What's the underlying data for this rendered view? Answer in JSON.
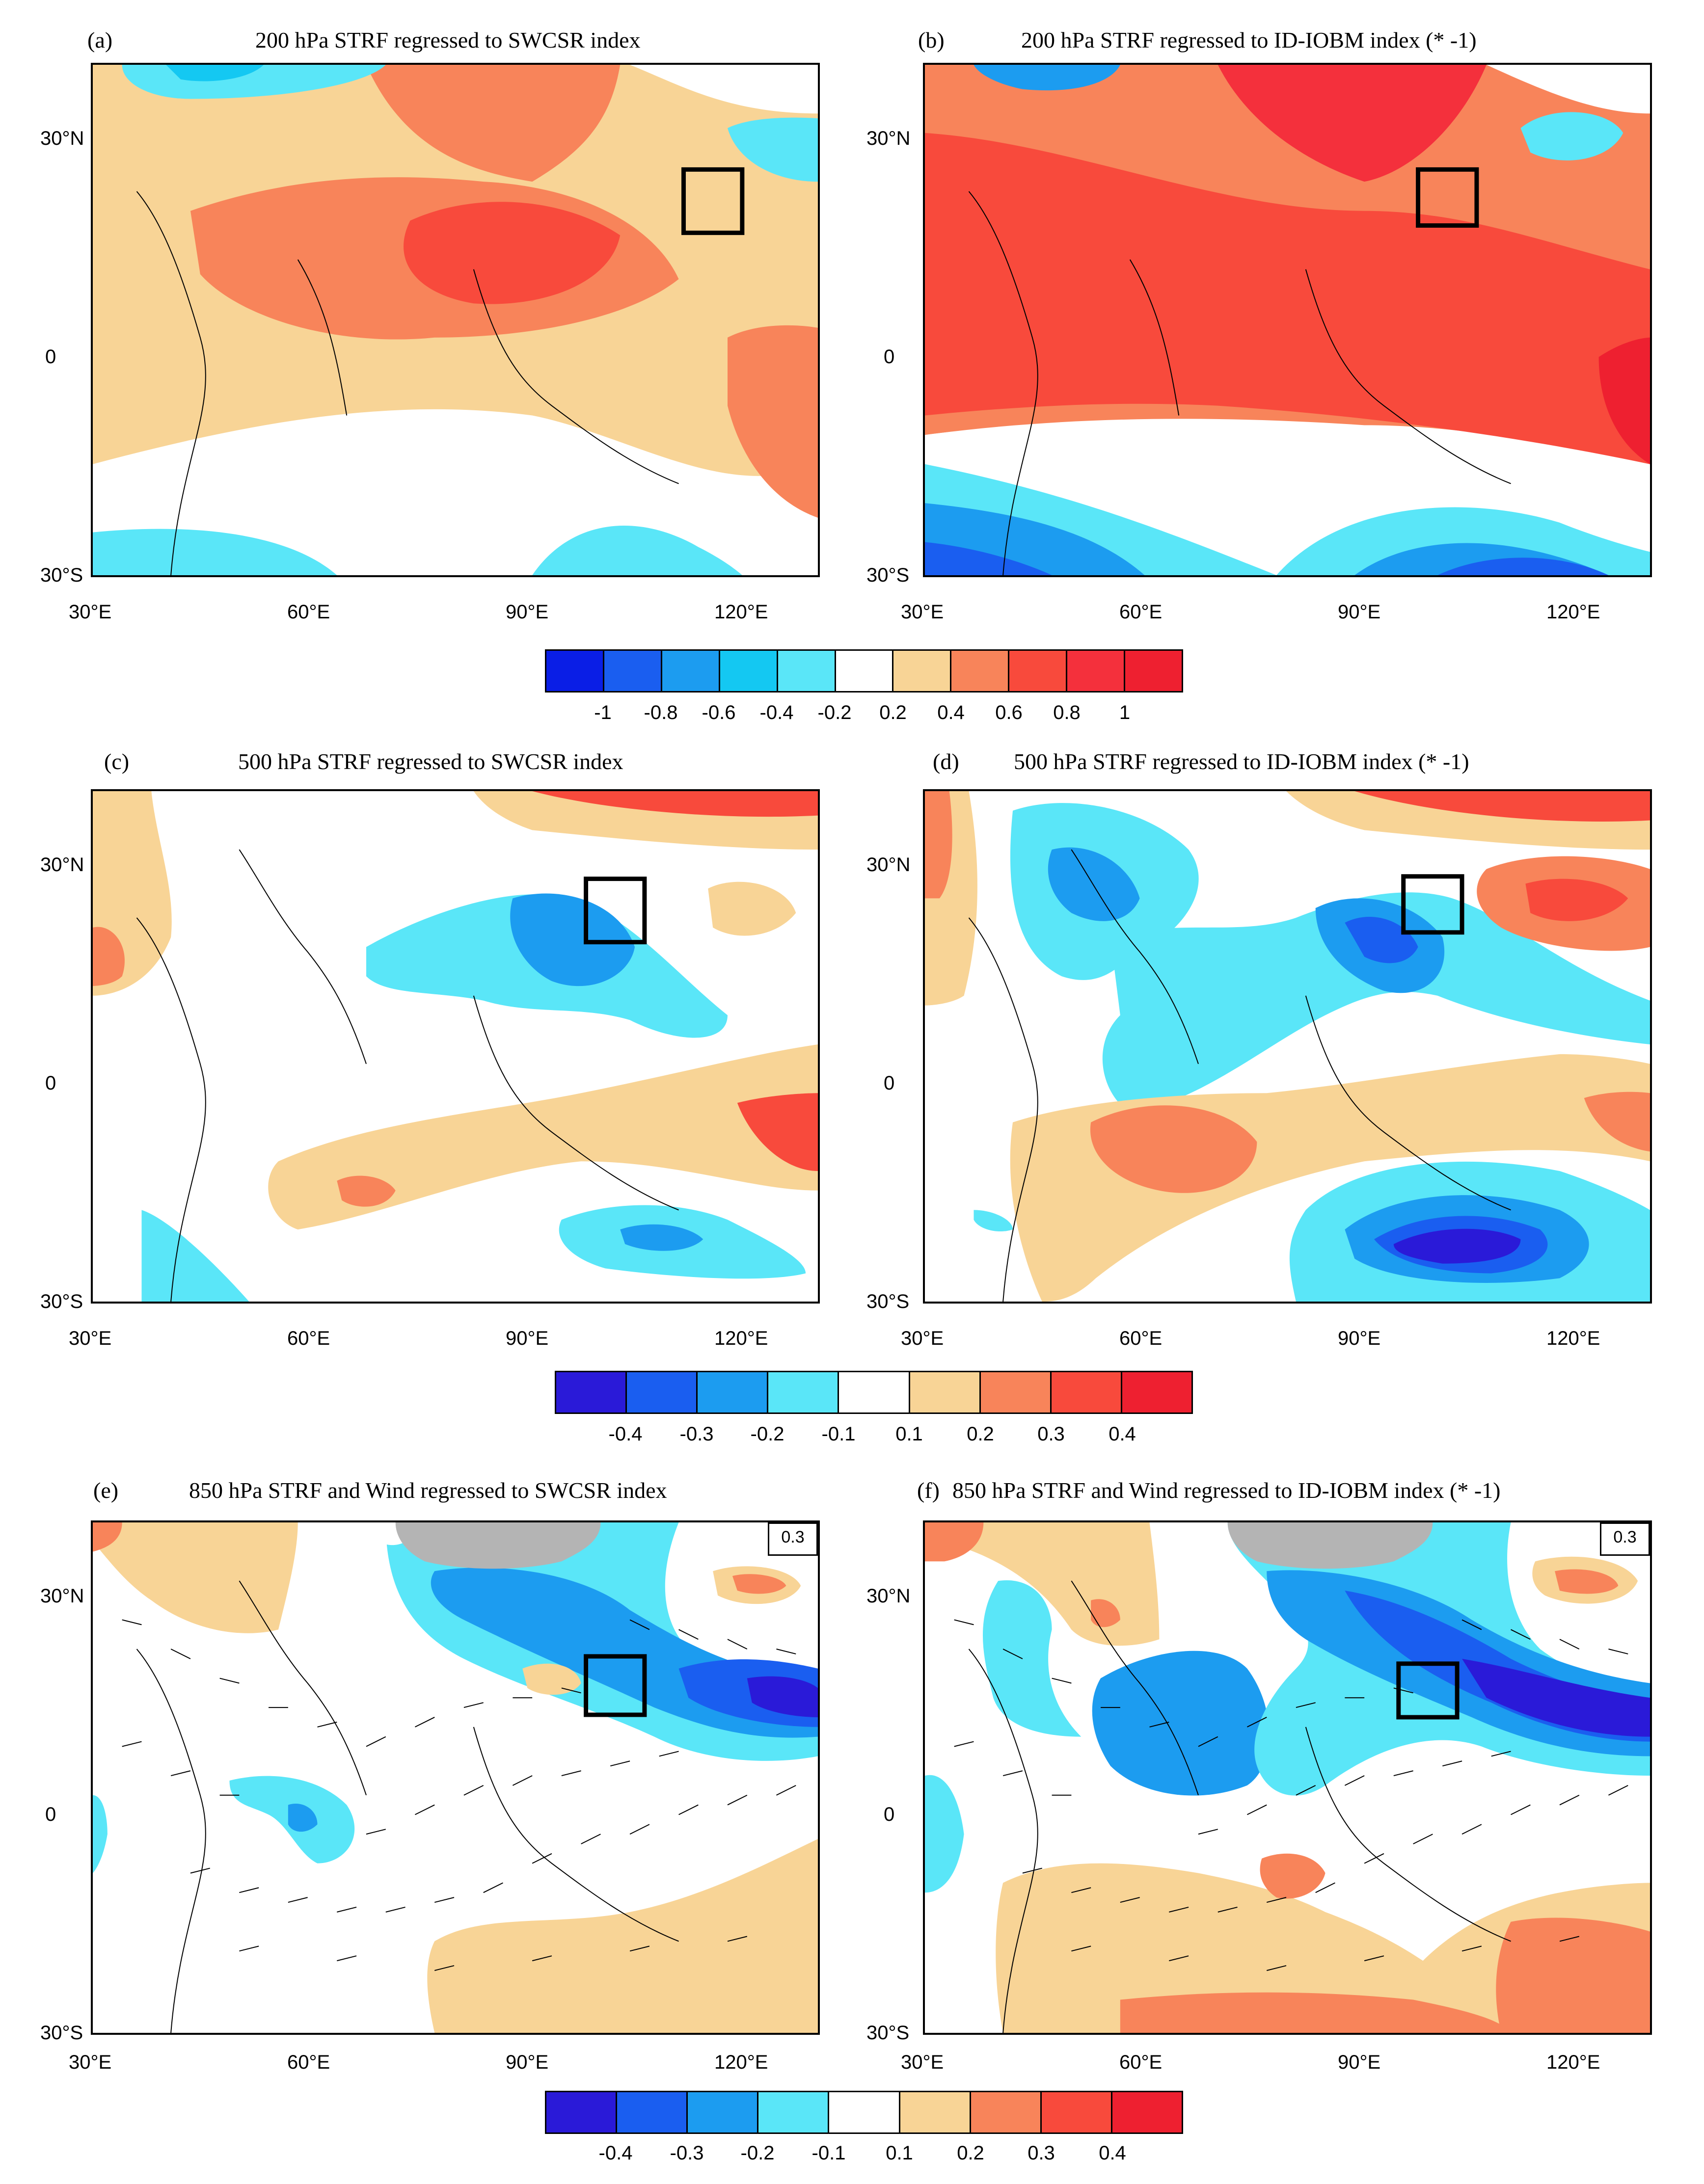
{
  "figure": {
    "panels": [
      {
        "tag": "(a)",
        "title": "200 hPa STRF regressed to  SWCSR index"
      },
      {
        "tag": "(b)",
        "title": "200 hPa STRF regressed to  ID-IOBM index (* -1)"
      },
      {
        "tag": "(c)",
        "title": "500 hPa STRF regressed to  SWCSR index"
      },
      {
        "tag": "(d)",
        "title": "500 hPa STRF regressed to  ID-IOBM index (* -1)"
      },
      {
        "tag": "(e)",
        "title": "850 hPa STRF and Wind regressed to  SWCSR index"
      },
      {
        "tag": "(f)",
        "title": "850 hPa STRF and Wind regressed to  ID-IOBM index (* -1)"
      }
    ],
    "lat_labels": [
      "30°N",
      "0",
      "30°S"
    ],
    "lon_labels": [
      "30°E",
      "60°E",
      "90°E",
      "120°E"
    ],
    "wind_reference": "0.3",
    "colorbars": [
      {
        "labels": [
          "-1",
          "-0.8",
          "-0.6",
          "-0.4",
          "-0.2",
          "0.2",
          "0.4",
          "0.6",
          "0.8",
          "1"
        ]
      },
      {
        "labels": [
          "-0.4",
          "-0.3",
          "-0.2",
          "-0.1",
          "0.1",
          "0.2",
          "0.3",
          "0.4"
        ]
      },
      {
        "labels": [
          "-0.4",
          "-0.3",
          "-0.2",
          "-0.1",
          "0.1",
          "0.2",
          "0.3",
          "0.4"
        ]
      }
    ],
    "colors": {
      "cb1": [
        "#0a1ee6",
        "#1a5ef0",
        "#1c9cf0",
        "#14c8f2",
        "#5ae6f8",
        "#ffffff",
        "#f8d496",
        "#f8845a",
        "#f84a3c",
        "#f4303c",
        "#ee2030"
      ],
      "cb2": [
        "#2a1ad8",
        "#1a5ef0",
        "#1c9cf0",
        "#5ae6f8",
        "#ffffff",
        "#f8d496",
        "#f8845a",
        "#f84a3c",
        "#ee2030"
      ],
      "land_gray": "#b4b4b4"
    }
  }
}
